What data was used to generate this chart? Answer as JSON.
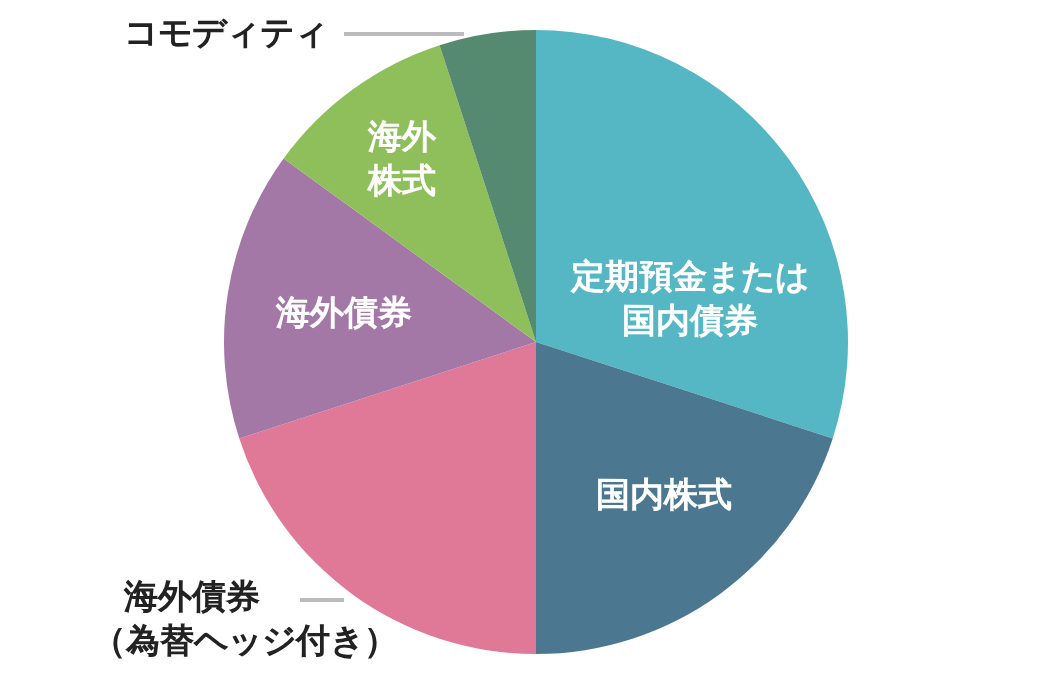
{
  "chart_data": {
    "type": "pie",
    "categories": [
      "定期預金または国内債券",
      "国内株式",
      "海外債券（為替ヘッジ付き）",
      "海外債券",
      "海外株式",
      "コモディティ"
    ],
    "values": [
      30,
      20,
      20,
      15,
      10,
      5
    ],
    "colors": [
      "#55b7c4",
      "#4b7890",
      "#e07898",
      "#a378a6",
      "#8fbf5a",
      "#558a70"
    ]
  }
}
